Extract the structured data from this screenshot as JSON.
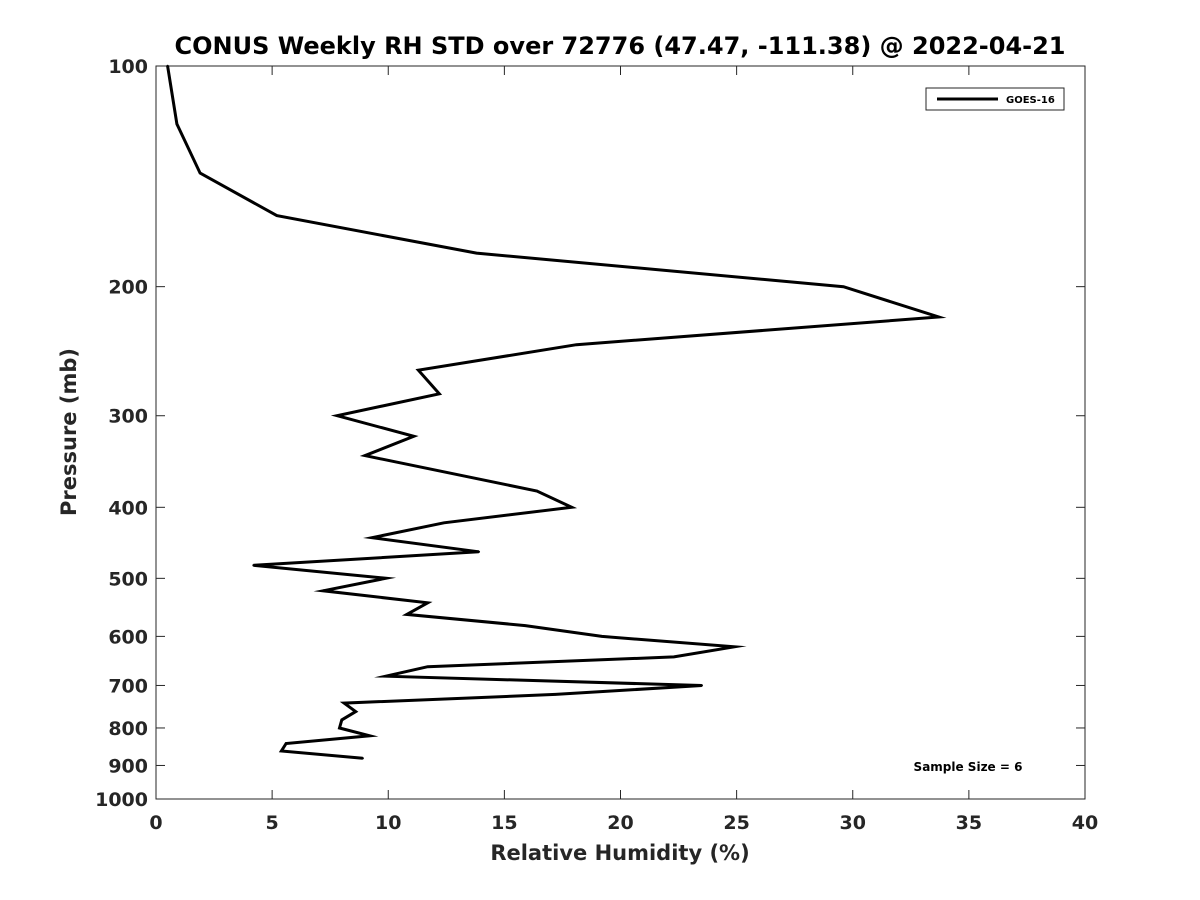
{
  "chart_data": {
    "type": "line",
    "title": "CONUS Weekly RH STD over 72776 (47.47, -111.38) @ 2022-04-21",
    "xlabel": "Relative Humidity (%)",
    "ylabel": "Pressure (mb)",
    "xlim": [
      0,
      40
    ],
    "ylim": [
      100,
      1000
    ],
    "yscale": "log",
    "yreversed": true,
    "x_ticks": [
      "0",
      "5",
      "10",
      "15",
      "20",
      "25",
      "30",
      "35",
      "40"
    ],
    "y_ticks": [
      "100",
      "200",
      "300",
      "400",
      "500",
      "600",
      "700",
      "800",
      "900",
      "1000"
    ],
    "grid": false,
    "legend_position": "top-right",
    "series": [
      {
        "name": "GOES-16",
        "color": "#000000",
        "points": [
          {
            "p": 100,
            "rh": 0.5
          },
          {
            "p": 120,
            "rh": 0.9
          },
          {
            "p": 140,
            "rh": 1.9
          },
          {
            "p": 160,
            "rh": 5.2
          },
          {
            "p": 180,
            "rh": 13.8
          },
          {
            "p": 200,
            "rh": 29.6
          },
          {
            "p": 220,
            "rh": 33.7
          },
          {
            "p": 240,
            "rh": 18.1
          },
          {
            "p": 260,
            "rh": 11.3
          },
          {
            "p": 280,
            "rh": 12.2
          },
          {
            "p": 300,
            "rh": 7.8
          },
          {
            "p": 320,
            "rh": 11.1
          },
          {
            "p": 340,
            "rh": 9.0
          },
          {
            "p": 380,
            "rh": 16.4
          },
          {
            "p": 400,
            "rh": 17.9
          },
          {
            "p": 420,
            "rh": 12.4
          },
          {
            "p": 440,
            "rh": 9.3
          },
          {
            "p": 460,
            "rh": 13.9
          },
          {
            "p": 480,
            "rh": 4.2
          },
          {
            "p": 500,
            "rh": 9.9
          },
          {
            "p": 520,
            "rh": 7.2
          },
          {
            "p": 540,
            "rh": 11.7
          },
          {
            "p": 560,
            "rh": 10.8
          },
          {
            "p": 580,
            "rh": 15.9
          },
          {
            "p": 600,
            "rh": 19.2
          },
          {
            "p": 620,
            "rh": 24.9
          },
          {
            "p": 640,
            "rh": 22.3
          },
          {
            "p": 660,
            "rh": 11.7
          },
          {
            "p": 680,
            "rh": 9.9
          },
          {
            "p": 700,
            "rh": 23.5
          },
          {
            "p": 720,
            "rh": 17.2
          },
          {
            "p": 740,
            "rh": 8.1
          },
          {
            "p": 760,
            "rh": 8.6
          },
          {
            "p": 780,
            "rh": 8.0
          },
          {
            "p": 800,
            "rh": 7.9
          },
          {
            "p": 820,
            "rh": 9.2
          },
          {
            "p": 840,
            "rh": 5.6
          },
          {
            "p": 860,
            "rh": 5.4
          },
          {
            "p": 880,
            "rh": 8.9
          }
        ]
      }
    ],
    "annotations": [
      {
        "text": "Sample Size = 6",
        "position": "bottom-right"
      }
    ]
  }
}
